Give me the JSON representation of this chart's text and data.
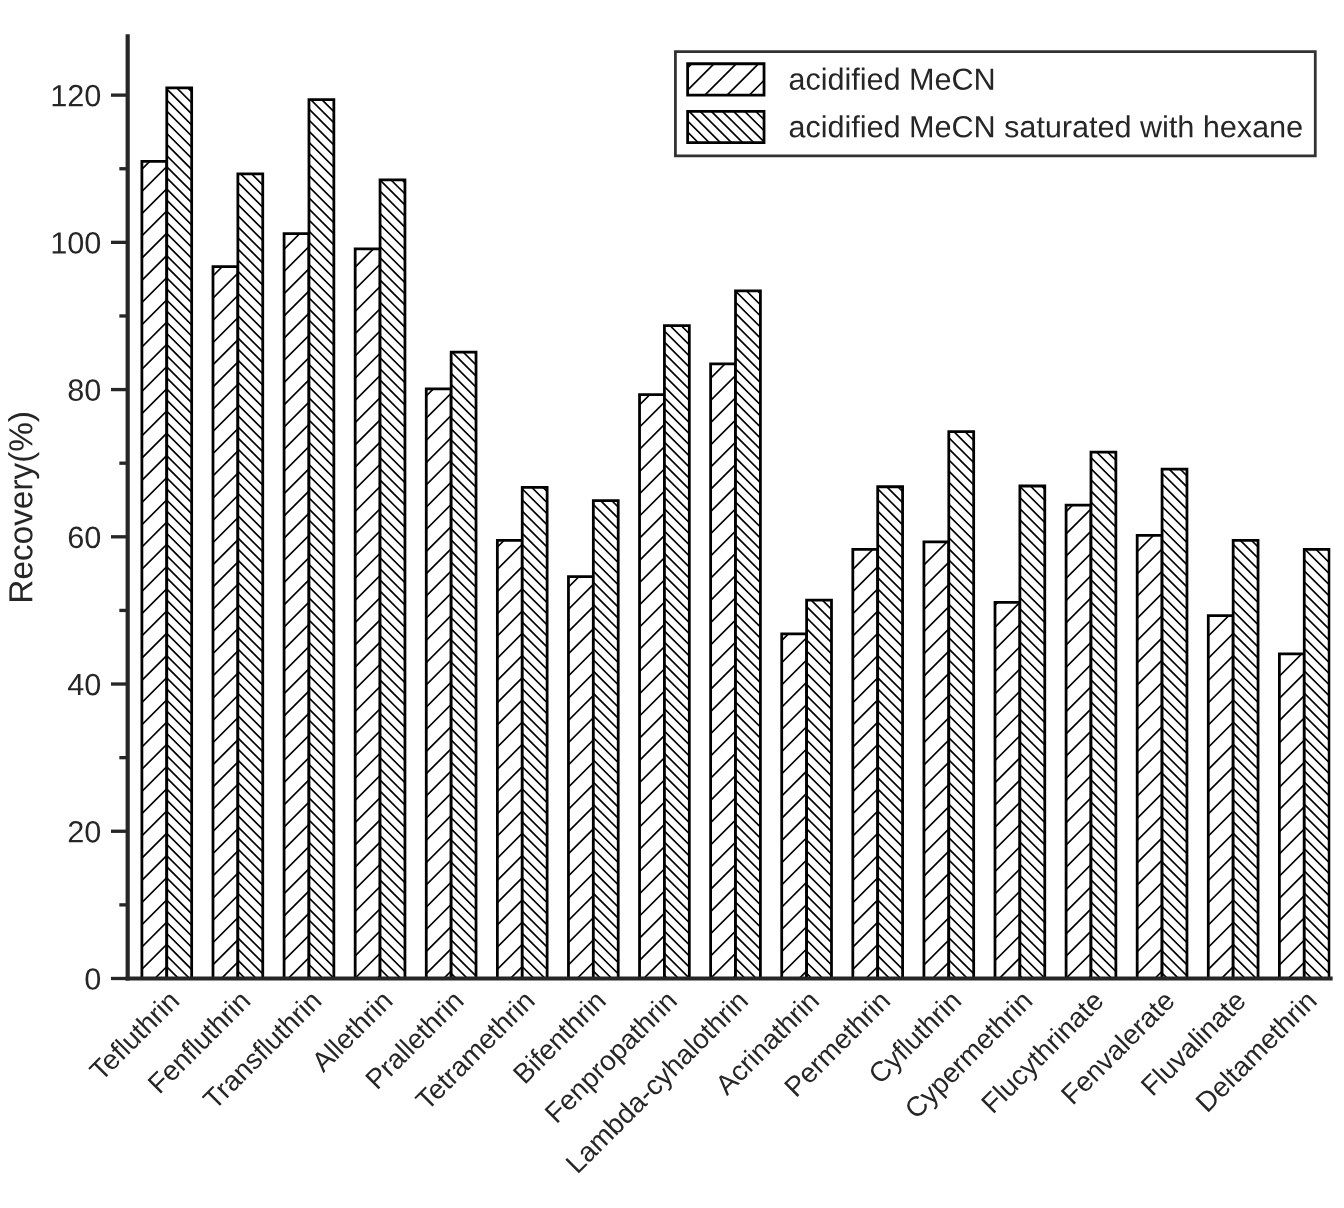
{
  "chart_data": {
    "type": "bar",
    "ylabel": "Recovery(%)",
    "categories": [
      "Tefluthrin",
      "Fenfluthrin",
      "Transfluthrin",
      "Allethrin",
      "Prallethrin",
      "Tetramethrin",
      "Bifenthrin",
      "Fenpropathrin",
      "Lambda-cyhalothrin",
      "Acrinathrin",
      "Permethrin",
      "Cyfluthrin",
      "Cypermethrin",
      "Flucythrinate",
      "Fenvalerate",
      "Fluvalinate",
      "Deltamethrin"
    ],
    "series": [
      {
        "name": "acidified MeCN",
        "color": "#000000",
        "values": [
          111,
          96.7,
          101.2,
          99.1,
          80.1,
          59.5,
          54.6,
          79.3,
          83.5,
          46.8,
          58.3,
          59.3,
          51.1,
          64.3,
          60.2,
          49.3,
          44.1
        ]
      },
      {
        "name": "acidified MeCN saturated with hexane",
        "color": "#000000",
        "values": [
          121,
          109.3,
          119.4,
          108.5,
          85.1,
          66.7,
          64.9,
          88.7,
          93.4,
          51.4,
          66.8,
          74.3,
          66.9,
          71.5,
          69.2,
          59.5,
          58.3
        ]
      }
    ],
    "ylim": [
      0,
      128
    ],
    "yticks": [
      0,
      20,
      40,
      60,
      80,
      100,
      120
    ],
    "grid": false,
    "legend": "top right"
  }
}
